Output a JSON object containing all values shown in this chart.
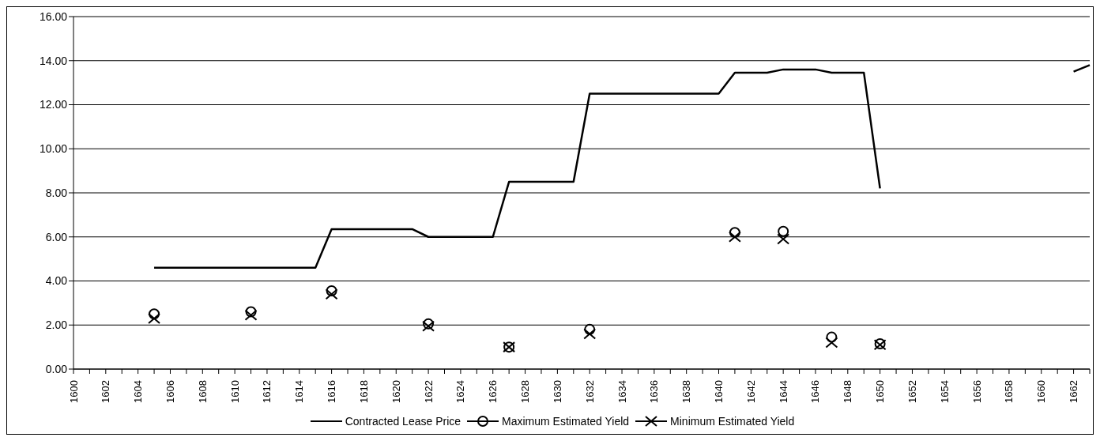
{
  "chart_data": {
    "type": "line",
    "categories": [
      "1600",
      null,
      "1602",
      null,
      "1604",
      null,
      "1606",
      null,
      "1608",
      null,
      "1610",
      null,
      "1612",
      null,
      "1614",
      null,
      "1616",
      null,
      "1618",
      null,
      "1620",
      null,
      "1622",
      null,
      "1624",
      null,
      "1626",
      null,
      "1628",
      null,
      "1630",
      null,
      "1632",
      null,
      "1634",
      null,
      "1636",
      null,
      "1638",
      null,
      "1640",
      null,
      "1642",
      null,
      "1644",
      null,
      "1646",
      null,
      "1648",
      null,
      "1650",
      null,
      "1652",
      null,
      "1654",
      null,
      "1656",
      null,
      "1658",
      null,
      "1660",
      null,
      "1662",
      null
    ],
    "series": [
      {
        "name": "Contracted Lease Price",
        "color": "#000000",
        "marker": "none",
        "line_style": "solid",
        "values": [
          null,
          null,
          null,
          null,
          null,
          4.6,
          4.6,
          4.6,
          4.6,
          4.6,
          4.6,
          4.6,
          4.6,
          4.6,
          4.6,
          4.6,
          6.35,
          6.35,
          6.35,
          6.35,
          6.35,
          6.35,
          6.0,
          6.0,
          6.0,
          6.0,
          6.0,
          8.5,
          8.5,
          8.5,
          8.5,
          8.5,
          12.5,
          12.5,
          12.5,
          12.5,
          12.5,
          12.5,
          12.5,
          12.5,
          12.5,
          13.45,
          13.45,
          13.45,
          13.6,
          13.6,
          13.6,
          13.45,
          13.45,
          13.45,
          8.2,
          null,
          null,
          null,
          null,
          null,
          null,
          null,
          null,
          null,
          null,
          null,
          13.5,
          13.8
        ]
      },
      {
        "name": "Maximum Estimated Yield",
        "color": "#000000",
        "marker": "circle",
        "line_style": "solid",
        "values": [
          null,
          null,
          null,
          null,
          null,
          2.5,
          null,
          null,
          null,
          null,
          null,
          2.6,
          null,
          null,
          null,
          null,
          3.55,
          null,
          null,
          null,
          null,
          null,
          2.05,
          null,
          null,
          null,
          null,
          1.0,
          null,
          null,
          null,
          null,
          1.8,
          null,
          null,
          null,
          null,
          null,
          null,
          null,
          null,
          6.2,
          null,
          null,
          6.25,
          null,
          null,
          1.45,
          null,
          null,
          1.15,
          null,
          null,
          null,
          null,
          null,
          null,
          null,
          null,
          null,
          null,
          null,
          null,
          null
        ]
      },
      {
        "name": "Minimum Estimated Yield",
        "color": "#000000",
        "marker": "cross",
        "line_style": "solid",
        "values": [
          null,
          null,
          null,
          null,
          null,
          2.3,
          null,
          null,
          null,
          null,
          null,
          2.45,
          null,
          null,
          null,
          null,
          3.4,
          null,
          null,
          null,
          null,
          null,
          1.95,
          null,
          null,
          null,
          null,
          1.0,
          null,
          null,
          null,
          null,
          1.6,
          null,
          null,
          null,
          null,
          null,
          null,
          null,
          null,
          6.0,
          null,
          null,
          5.9,
          null,
          null,
          1.2,
          null,
          null,
          1.1,
          null,
          null,
          null,
          null,
          null,
          null,
          null,
          null,
          null,
          null,
          null,
          null,
          null
        ]
      }
    ],
    "ylim": [
      0,
      16
    ],
    "yticks": [
      {
        "value": 0,
        "label": "0.00"
      },
      {
        "value": 2,
        "label": "2.00"
      },
      {
        "value": 4,
        "label": "4.00"
      },
      {
        "value": 6,
        "label": "6.00"
      },
      {
        "value": 8,
        "label": "8.00"
      },
      {
        "value": 10,
        "label": "10.00"
      },
      {
        "value": 12,
        "label": "12.00"
      },
      {
        "value": 14,
        "label": "14.00"
      },
      {
        "value": 16,
        "label": "16.00"
      }
    ],
    "grid": "y",
    "legend": "bottom"
  }
}
